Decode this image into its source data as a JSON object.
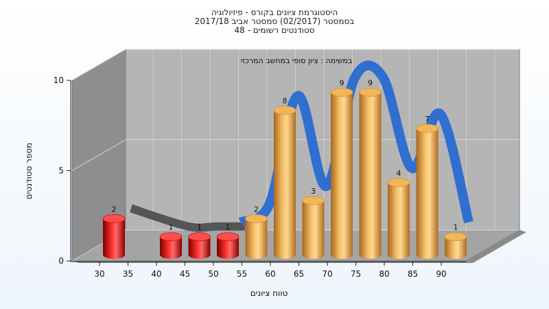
{
  "title": {
    "line1": "היסטוגרמת ציונים בקורס - פיזיולוגיה",
    "line2": "בסמסטר (02/2017) סמסטר אביב 2017/18",
    "line3": "סטודנטים רשומים - 48"
  },
  "chart_data": {
    "type": "bar",
    "subtitle": "במשימה : ציון סופי במחשב המרכזי",
    "xlabel": "טווח ציונים",
    "ylabel": "מספר סטודנטים",
    "ylim": [
      0,
      10
    ],
    "yticks": [
      0,
      5,
      10
    ],
    "xticks": [
      "30",
      "35",
      "40",
      "45",
      "50",
      "55",
      "60",
      "65",
      "70",
      "75",
      "80",
      "85",
      "90"
    ],
    "categories": [
      "30",
      "40",
      "45",
      "50",
      "55",
      "60",
      "65",
      "70",
      "75",
      "80",
      "85",
      "90"
    ],
    "values": [
      2,
      1,
      1,
      1,
      2,
      8,
      3,
      9,
      9,
      4,
      7,
      1
    ],
    "bar_colors": [
      "#e01010",
      "#e01010",
      "#e01010",
      "#e01010",
      "#e8a040",
      "#e8a040",
      "#e8a040",
      "#e8a040",
      "#e8a040",
      "#e8a040",
      "#e8a040",
      "#e8a040"
    ],
    "curve_color": "#2f6fd0",
    "curve_shadow_color": "#555555",
    "wall_color": "#b5b5b5",
    "grid": true
  }
}
